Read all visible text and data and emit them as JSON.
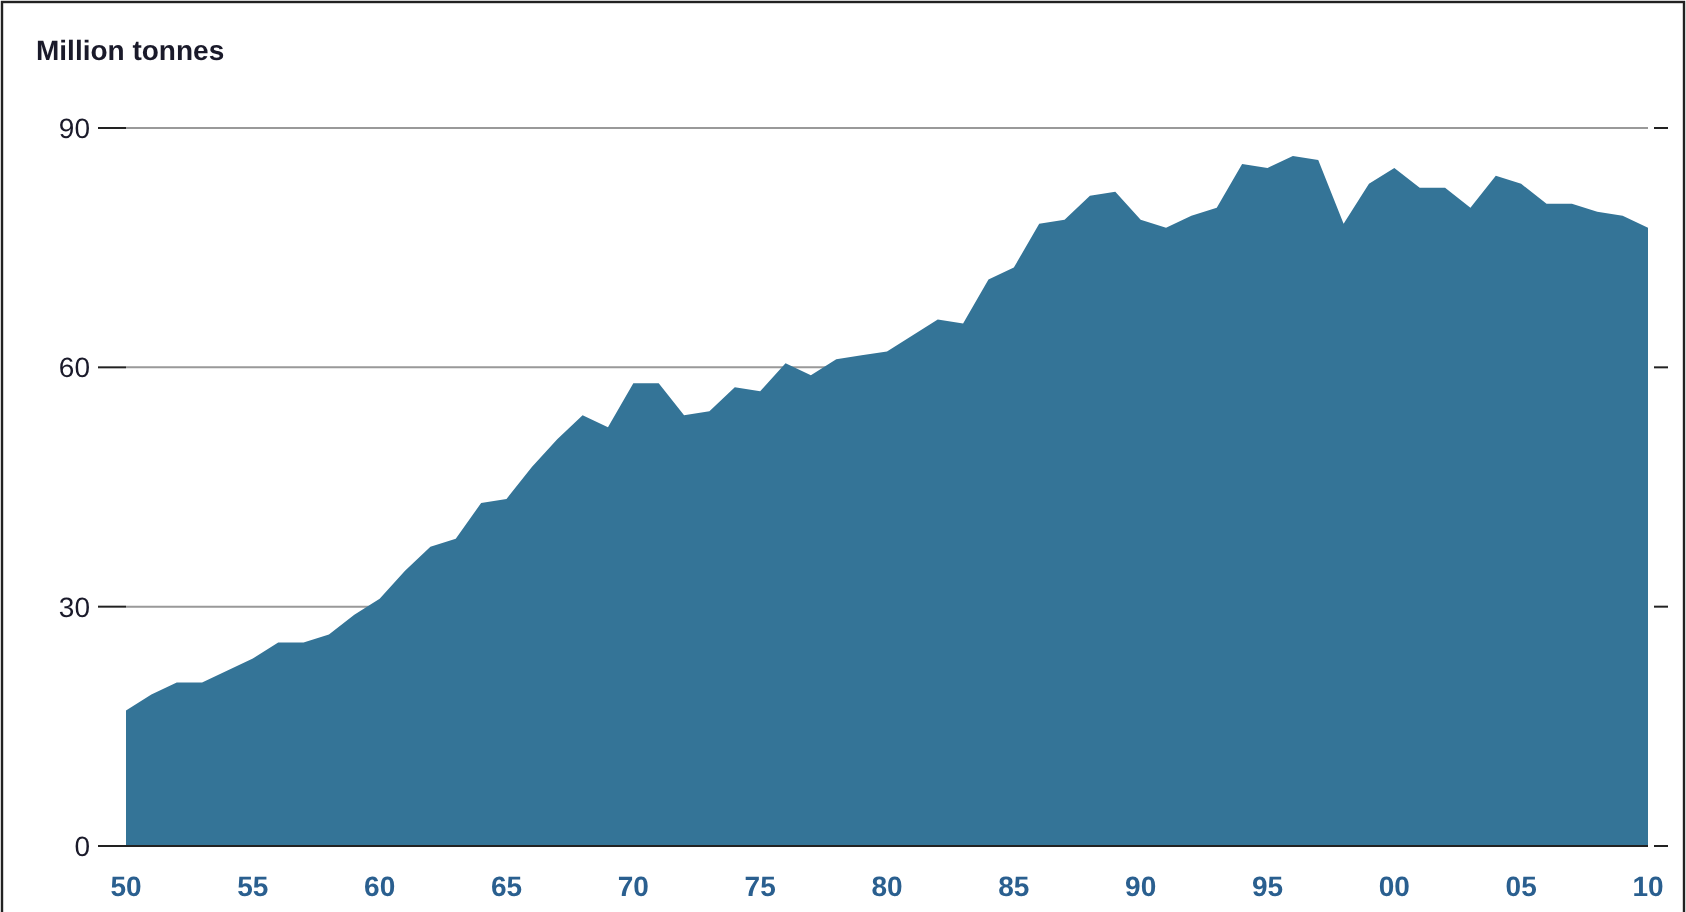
{
  "chart_data": {
    "type": "area",
    "ylabel": "Million tonnes",
    "x": [
      1950,
      1951,
      1952,
      1953,
      1954,
      1955,
      1956,
      1957,
      1958,
      1959,
      1960,
      1961,
      1962,
      1963,
      1964,
      1965,
      1966,
      1967,
      1968,
      1969,
      1970,
      1971,
      1972,
      1973,
      1974,
      1975,
      1976,
      1977,
      1978,
      1979,
      1980,
      1981,
      1982,
      1983,
      1984,
      1985,
      1986,
      1987,
      1988,
      1989,
      1990,
      1991,
      1992,
      1993,
      1994,
      1995,
      1996,
      1997,
      1998,
      1999,
      2000,
      2001,
      2002,
      2003,
      2004,
      2005,
      2006,
      2007,
      2008,
      2009,
      2010
    ],
    "series": [
      {
        "color": "#347497",
        "values": [
          17,
          19,
          20.5,
          20.5,
          22,
          23.5,
          25.5,
          25.5,
          26.5,
          29,
          31,
          34.5,
          37.5,
          38.5,
          43,
          43.5,
          47.5,
          51,
          54,
          52.5,
          58,
          58,
          54,
          54.5,
          57.5,
          57,
          60.5,
          59,
          61,
          61.5,
          62,
          64,
          66,
          65.5,
          71,
          72.5,
          78,
          78.5,
          81.5,
          82,
          78.5,
          77.5,
          79,
          80,
          85.5,
          85,
          86.5,
          86,
          78,
          83,
          85,
          82.5,
          82.5,
          80,
          84,
          83,
          80.5,
          80.5,
          79.5,
          79,
          77.5
        ]
      }
    ],
    "xlim": [
      1950,
      2010
    ],
    "xticks": [
      {
        "value": 1950,
        "label": "50"
      },
      {
        "value": 1955,
        "label": "55"
      },
      {
        "value": 1960,
        "label": "60"
      },
      {
        "value": 1965,
        "label": "65"
      },
      {
        "value": 1970,
        "label": "70"
      },
      {
        "value": 1975,
        "label": "75"
      },
      {
        "value": 1980,
        "label": "80"
      },
      {
        "value": 1985,
        "label": "85"
      },
      {
        "value": 1990,
        "label": "90"
      },
      {
        "value": 1995,
        "label": "95"
      },
      {
        "value": 2000,
        "label": "00"
      },
      {
        "value": 2005,
        "label": "05"
      },
      {
        "value": 2010,
        "label": "10"
      }
    ],
    "ylim": [
      0,
      90
    ],
    "yticks": [
      0,
      30,
      60,
      90
    ],
    "grid": "y"
  }
}
